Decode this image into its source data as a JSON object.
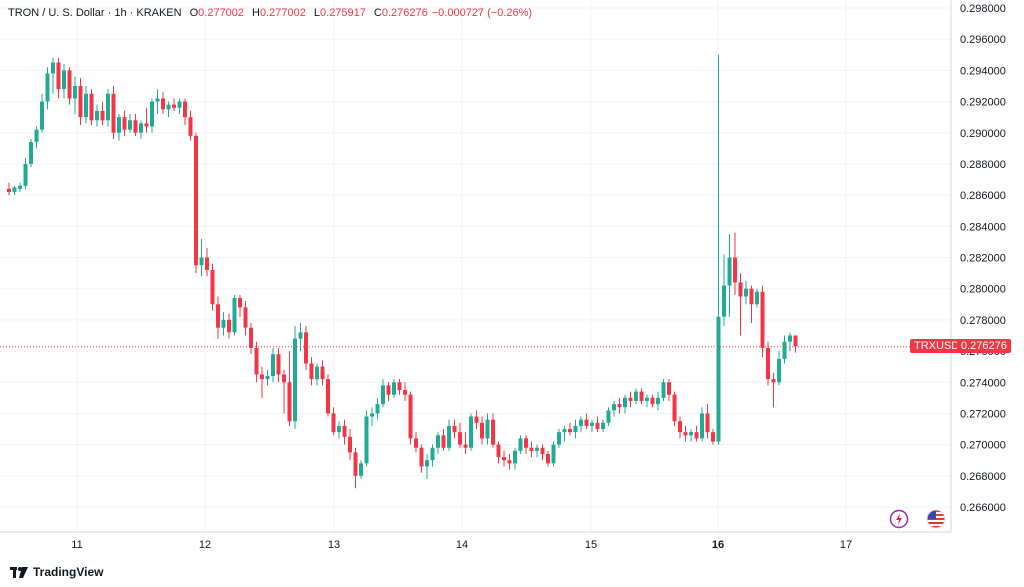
{
  "header": {
    "symbol": "TRON / U. S. Dollar · 1h · KRAKEN",
    "o_label": "O",
    "o_value": "0.277002",
    "h_label": "H",
    "h_value": "0.277002",
    "l_label": "L",
    "l_value": "0.275917",
    "c_label": "C",
    "c_value": "0.276276",
    "change": "−0.000727 (−0.26%)"
  },
  "price_tag": {
    "symbol": "TRXUSD",
    "price": "0.276276"
  },
  "footer": {
    "brand": "TradingView"
  },
  "icons": {
    "alert": "lightning-icon",
    "flag": "us-flag-icon"
  },
  "colors": {
    "up": "#22AB94",
    "down": "#F23645",
    "grid": "#F0F3FA",
    "axis_text": "#131722"
  },
  "chart_data": {
    "type": "candlestick",
    "symbol": "TRXUSD",
    "interval": "1h",
    "exchange": "KRAKEN",
    "ylim": [
      0.2648,
      0.2982
    ],
    "y_ticks": [
      "0.298000",
      "0.296000",
      "0.294000",
      "0.292000",
      "0.290000",
      "0.288000",
      "0.286000",
      "0.284000",
      "0.282000",
      "0.280000",
      "0.278000",
      "0.276000",
      "0.274000",
      "0.272000",
      "0.270000",
      "0.268000",
      "0.266000"
    ],
    "y_tick_values": [
      0.298,
      0.296,
      0.294,
      0.292,
      0.29,
      0.288,
      0.286,
      0.284,
      0.282,
      0.28,
      0.278,
      0.276,
      0.274,
      0.272,
      0.27,
      0.268,
      0.266
    ],
    "x_ticks": [
      "11",
      "12",
      "13",
      "14",
      "15",
      "16",
      "17"
    ],
    "x_tick_bold": [
      false,
      false,
      false,
      false,
      false,
      true,
      false
    ],
    "current_price": 0.276276,
    "grid": true,
    "candles": [
      [
        0.2864,
        0.2868,
        0.286,
        0.2862
      ],
      [
        0.2862,
        0.2866,
        0.286,
        0.2865
      ],
      [
        0.2864,
        0.2868,
        0.2862,
        0.2866
      ],
      [
        0.2866,
        0.2884,
        0.2864,
        0.288
      ],
      [
        0.288,
        0.2896,
        0.2878,
        0.2894
      ],
      [
        0.2894,
        0.2904,
        0.289,
        0.2902
      ],
      [
        0.2902,
        0.2925,
        0.29,
        0.292
      ],
      [
        0.292,
        0.2942,
        0.2915,
        0.2938
      ],
      [
        0.2938,
        0.2948,
        0.2925,
        0.2945
      ],
      [
        0.2945,
        0.2948,
        0.2922,
        0.2928
      ],
      [
        0.2928,
        0.2944,
        0.2922,
        0.294
      ],
      [
        0.294,
        0.2942,
        0.2918,
        0.2922
      ],
      [
        0.2922,
        0.2936,
        0.2912,
        0.293
      ],
      [
        0.293,
        0.2935,
        0.2905,
        0.291
      ],
      [
        0.291,
        0.293,
        0.2906,
        0.2925
      ],
      [
        0.2925,
        0.2928,
        0.2905,
        0.2908
      ],
      [
        0.2908,
        0.2918,
        0.2904,
        0.2914
      ],
      [
        0.2914,
        0.292,
        0.2905,
        0.2908
      ],
      [
        0.2908,
        0.2928,
        0.2904,
        0.2925
      ],
      [
        0.2925,
        0.293,
        0.2896,
        0.29
      ],
      [
        0.29,
        0.2912,
        0.2895,
        0.291
      ],
      [
        0.291,
        0.2914,
        0.2898,
        0.2902
      ],
      [
        0.2902,
        0.2912,
        0.29,
        0.2908
      ],
      [
        0.2908,
        0.2912,
        0.2898,
        0.29
      ],
      [
        0.29,
        0.2908,
        0.2896,
        0.2906
      ],
      [
        0.2906,
        0.2916,
        0.29,
        0.2904
      ],
      [
        0.2904,
        0.2922,
        0.29,
        0.292
      ],
      [
        0.292,
        0.2928,
        0.2912,
        0.2922
      ],
      [
        0.2922,
        0.2926,
        0.2912,
        0.2915
      ],
      [
        0.2915,
        0.292,
        0.291,
        0.2918
      ],
      [
        0.2918,
        0.2922,
        0.2914,
        0.2916
      ],
      [
        0.2916,
        0.2922,
        0.2912,
        0.292
      ],
      [
        0.292,
        0.2922,
        0.2905,
        0.291
      ],
      [
        0.291,
        0.2914,
        0.2895,
        0.2898
      ],
      [
        0.2898,
        0.29,
        0.281,
        0.2815
      ],
      [
        0.2815,
        0.2832,
        0.2808,
        0.282
      ],
      [
        0.282,
        0.2826,
        0.2808,
        0.2812
      ],
      [
        0.2812,
        0.2816,
        0.2786,
        0.279
      ],
      [
        0.279,
        0.2795,
        0.2768,
        0.2775
      ],
      [
        0.2775,
        0.2785,
        0.277,
        0.278
      ],
      [
        0.278,
        0.2784,
        0.2768,
        0.2772
      ],
      [
        0.2772,
        0.2796,
        0.277,
        0.2794
      ],
      [
        0.2794,
        0.2796,
        0.2782,
        0.2788
      ],
      [
        0.2788,
        0.2792,
        0.277,
        0.2775
      ],
      [
        0.2775,
        0.2778,
        0.2758,
        0.2762
      ],
      [
        0.2762,
        0.2766,
        0.274,
        0.2745
      ],
      [
        0.2745,
        0.275,
        0.273,
        0.2742
      ],
      [
        0.2742,
        0.2748,
        0.2738,
        0.2744
      ],
      [
        0.2744,
        0.2762,
        0.274,
        0.2758
      ],
      [
        0.2758,
        0.2762,
        0.274,
        0.2745
      ],
      [
        0.2745,
        0.2748,
        0.272,
        0.274
      ],
      [
        0.274,
        0.276,
        0.2712,
        0.2715
      ],
      [
        0.2715,
        0.2776,
        0.271,
        0.2768
      ],
      [
        0.2768,
        0.2778,
        0.276,
        0.2772
      ],
      [
        0.2772,
        0.2776,
        0.2748,
        0.2752
      ],
      [
        0.2752,
        0.2756,
        0.2738,
        0.2742
      ],
      [
        0.2742,
        0.2752,
        0.2738,
        0.275
      ],
      [
        0.275,
        0.2754,
        0.2738,
        0.2742
      ],
      [
        0.2742,
        0.2745,
        0.2718,
        0.272
      ],
      [
        0.272,
        0.2724,
        0.2706,
        0.2708
      ],
      [
        0.2708,
        0.2715,
        0.2704,
        0.2712
      ],
      [
        0.2712,
        0.2716,
        0.27,
        0.2705
      ],
      [
        0.2705,
        0.271,
        0.269,
        0.2695
      ],
      [
        0.2695,
        0.2698,
        0.2672,
        0.268
      ],
      [
        0.268,
        0.269,
        0.2678,
        0.2688
      ],
      [
        0.2688,
        0.2722,
        0.2686,
        0.2718
      ],
      [
        0.2718,
        0.2724,
        0.2712,
        0.272
      ],
      [
        0.272,
        0.273,
        0.2716,
        0.2726
      ],
      [
        0.2726,
        0.2742,
        0.2724,
        0.2738
      ],
      [
        0.2738,
        0.274,
        0.2728,
        0.2732
      ],
      [
        0.2732,
        0.2742,
        0.273,
        0.274
      ],
      [
        0.274,
        0.2742,
        0.2732,
        0.2735
      ],
      [
        0.2735,
        0.274,
        0.2728,
        0.2732
      ],
      [
        0.2732,
        0.2734,
        0.27,
        0.2704
      ],
      [
        0.2704,
        0.2708,
        0.2695,
        0.2698
      ],
      [
        0.2698,
        0.27,
        0.2682,
        0.2686
      ],
      [
        0.2686,
        0.2694,
        0.2678,
        0.269
      ],
      [
        0.269,
        0.27,
        0.2686,
        0.2698
      ],
      [
        0.2698,
        0.2708,
        0.2694,
        0.2706
      ],
      [
        0.2706,
        0.271,
        0.2696,
        0.2698
      ],
      [
        0.2698,
        0.2716,
        0.2696,
        0.2712
      ],
      [
        0.2712,
        0.2716,
        0.2704,
        0.2708
      ],
      [
        0.2708,
        0.2714,
        0.2698,
        0.27
      ],
      [
        0.27,
        0.2708,
        0.2694,
        0.2698
      ],
      [
        0.2698,
        0.272,
        0.2696,
        0.2718
      ],
      [
        0.2718,
        0.2722,
        0.271,
        0.2714
      ],
      [
        0.2714,
        0.2718,
        0.27,
        0.2704
      ],
      [
        0.2704,
        0.272,
        0.27,
        0.2716
      ],
      [
        0.2716,
        0.272,
        0.2698,
        0.27
      ],
      [
        0.27,
        0.2702,
        0.2688,
        0.2692
      ],
      [
        0.2692,
        0.2696,
        0.2686,
        0.269
      ],
      [
        0.269,
        0.2694,
        0.2684,
        0.2688
      ],
      [
        0.2688,
        0.2698,
        0.2684,
        0.2696
      ],
      [
        0.2696,
        0.2706,
        0.2694,
        0.2704
      ],
      [
        0.2704,
        0.2706,
        0.2694,
        0.2698
      ],
      [
        0.2698,
        0.2702,
        0.2692,
        0.2696
      ],
      [
        0.2696,
        0.27,
        0.2692,
        0.2698
      ],
      [
        0.2698,
        0.27,
        0.269,
        0.2694
      ],
      [
        0.2694,
        0.2696,
        0.2686,
        0.2688
      ],
      [
        0.2688,
        0.2702,
        0.2686,
        0.27
      ],
      [
        0.27,
        0.271,
        0.2698,
        0.2708
      ],
      [
        0.2708,
        0.2712,
        0.2702,
        0.271
      ],
      [
        0.271,
        0.2714,
        0.2706,
        0.2708
      ],
      [
        0.2708,
        0.2716,
        0.2704,
        0.2712
      ],
      [
        0.2712,
        0.2718,
        0.2708,
        0.2716
      ],
      [
        0.2716,
        0.272,
        0.271,
        0.2712
      ],
      [
        0.2712,
        0.2716,
        0.2708,
        0.2714
      ],
      [
        0.2714,
        0.2718,
        0.2708,
        0.271
      ],
      [
        0.271,
        0.2716,
        0.2708,
        0.2714
      ],
      [
        0.2714,
        0.2724,
        0.2712,
        0.2722
      ],
      [
        0.2722,
        0.2728,
        0.2718,
        0.2726
      ],
      [
        0.2726,
        0.273,
        0.272,
        0.2724
      ],
      [
        0.2724,
        0.2732,
        0.272,
        0.273
      ],
      [
        0.273,
        0.2734,
        0.2724,
        0.2728
      ],
      [
        0.2728,
        0.2736,
        0.2726,
        0.2734
      ],
      [
        0.2734,
        0.2736,
        0.2726,
        0.2728
      ],
      [
        0.2728,
        0.2732,
        0.2724,
        0.273
      ],
      [
        0.273,
        0.2732,
        0.2724,
        0.2726
      ],
      [
        0.2726,
        0.2734,
        0.2722,
        0.273
      ],
      [
        0.273,
        0.2742,
        0.2728,
        0.274
      ],
      [
        0.274,
        0.2742,
        0.2728,
        0.2732
      ],
      [
        0.2732,
        0.2734,
        0.2712,
        0.2715
      ],
      [
        0.2715,
        0.2718,
        0.2704,
        0.2708
      ],
      [
        0.2708,
        0.2712,
        0.2702,
        0.2706
      ],
      [
        0.2706,
        0.271,
        0.2702,
        0.2708
      ],
      [
        0.2708,
        0.2712,
        0.2702,
        0.2704
      ],
      [
        0.2704,
        0.2724,
        0.2702,
        0.272
      ],
      [
        0.272,
        0.2726,
        0.2704,
        0.2708
      ],
      [
        0.2708,
        0.271,
        0.27,
        0.2702
      ],
      [
        0.2702,
        0.295,
        0.27,
        0.2782
      ],
      [
        0.2782,
        0.2822,
        0.2776,
        0.2802
      ],
      [
        0.2802,
        0.2835,
        0.2782,
        0.282
      ],
      [
        0.282,
        0.2836,
        0.2796,
        0.2804
      ],
      [
        0.2804,
        0.281,
        0.277,
        0.2795
      ],
      [
        0.2795,
        0.2805,
        0.279,
        0.28
      ],
      [
        0.28,
        0.2802,
        0.2778,
        0.279
      ],
      [
        0.279,
        0.28,
        0.2788,
        0.2798
      ],
      [
        0.2798,
        0.2802,
        0.2756,
        0.2762
      ],
      [
        0.2762,
        0.2766,
        0.2738,
        0.2742
      ],
      [
        0.2742,
        0.2746,
        0.2724,
        0.274
      ],
      [
        0.274,
        0.276,
        0.2738,
        0.2755
      ],
      [
        0.2755,
        0.277,
        0.2752,
        0.2766
      ],
      [
        0.2766,
        0.2772,
        0.276,
        0.277
      ],
      [
        0.277,
        0.277,
        0.2759,
        0.2763
      ]
    ]
  }
}
